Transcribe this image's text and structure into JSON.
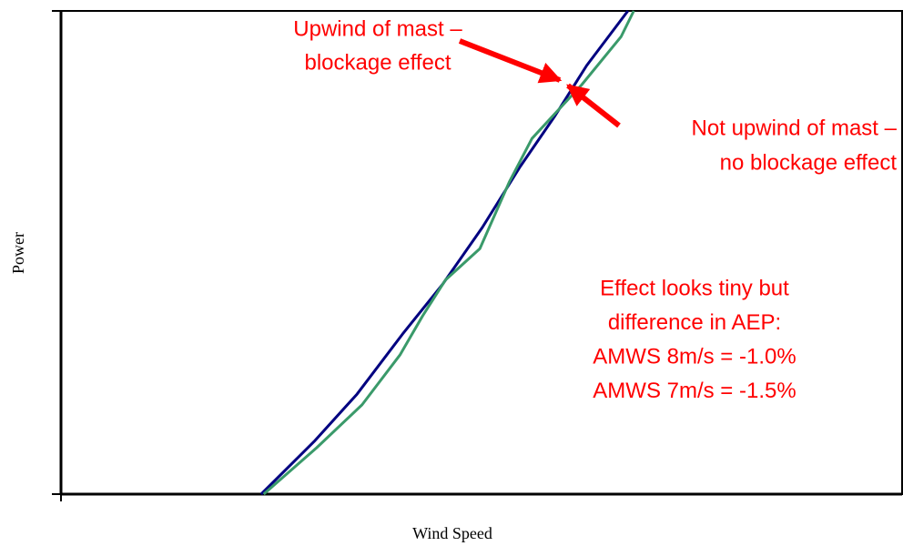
{
  "chart_data": {
    "type": "line",
    "xlabel": "Wind Speed",
    "ylabel": "Power",
    "xlim": [
      0,
      100
    ],
    "ylim": [
      0,
      100
    ],
    "series": [
      {
        "color": "#000080",
        "x": [
          23.8,
          30.1,
          35.2,
          40.6,
          45.4,
          50.1,
          54.6,
          58.7,
          62.5,
          67.4
        ],
        "values": [
          0,
          10.9,
          20.7,
          33.1,
          43.5,
          55.2,
          67.8,
          78.2,
          88.7,
          100
        ]
      },
      {
        "color": "#3a9a6a",
        "x": [
          24.1,
          30.4,
          35.8,
          40.3,
          43.0,
          45.7,
          49.8,
          53.3,
          56.0,
          58.7,
          61.9,
          66.6,
          68.1
        ],
        "values": [
          0,
          9.6,
          18.5,
          28.8,
          36.9,
          44.3,
          50.8,
          64.6,
          73.6,
          78.7,
          84.7,
          94.7,
          100
        ]
      }
    ],
    "annotations": [
      {
        "lines": [
          "Upwind of mast –",
          "blockage effect"
        ],
        "color": "#ff0000"
      },
      {
        "lines": [
          "Not upwind of mast –",
          "no blockage effect"
        ],
        "color": "#ff0000"
      },
      {
        "lines": [
          "Effect looks tiny but",
          "difference in AEP:",
          "AMWS 8m/s = -1.0%",
          "AMWS 7m/s = -1.5%"
        ],
        "color": "#ff0000"
      }
    ]
  }
}
